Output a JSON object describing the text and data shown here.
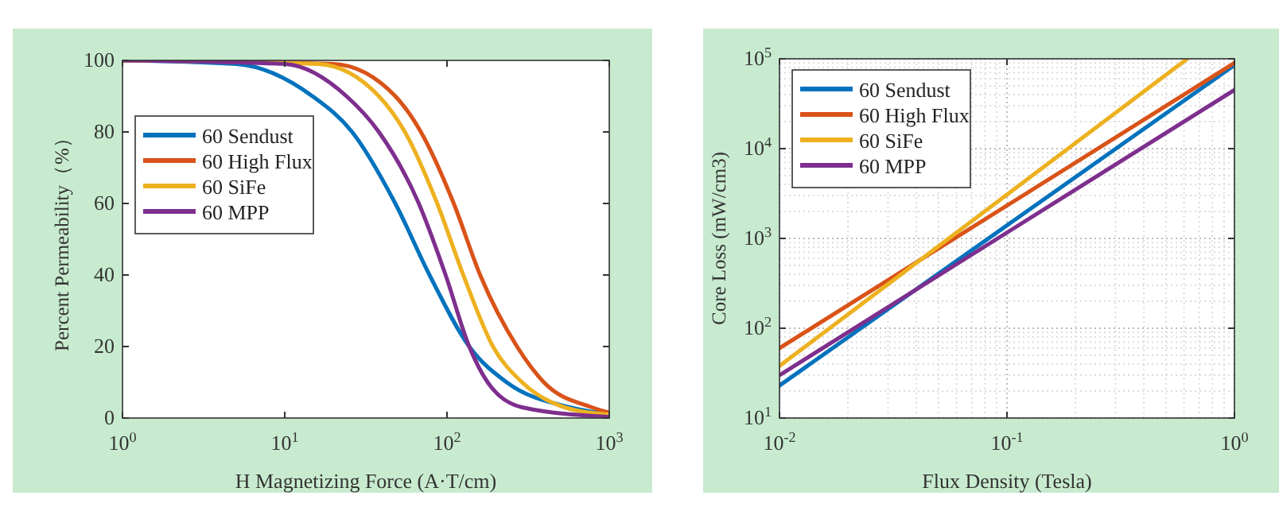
{
  "chart_data": [
    {
      "type": "line",
      "xlabel": "H Magnetizing Force (A·T/cm)",
      "ylabel": "Percent Permeability（%）",
      "log": "x",
      "xlim": [
        1,
        1000
      ],
      "ylim": [
        0,
        100
      ],
      "xticks": [
        {
          "value": 1,
          "label": "10$^{0}$"
        },
        {
          "value": 10,
          "label": "10$^{1}$"
        },
        {
          "value": 100,
          "label": "10$^{2}$"
        },
        {
          "value": 1000,
          "label": "10$^{3}$"
        }
      ],
      "yticks": [
        0,
        20,
        40,
        60,
        80,
        100
      ],
      "grid": false,
      "legend": "top left",
      "series": [
        {
          "name": "60 Sendust",
          "color": "#0072bd",
          "x": [
            1,
            5,
            14.8,
            26,
            48,
            78,
            137,
            233,
            570,
            1000
          ],
          "values": [
            100,
            99,
            90,
            80,
            60,
            40,
            20,
            10,
            3,
            1
          ]
        },
        {
          "name": "60 High Flux",
          "color": "#d95319",
          "x": [
            1,
            20,
            48,
            69,
            110,
            160,
            270,
            395,
            780,
            1000
          ],
          "values": [
            100,
            99,
            90,
            80,
            60,
            40,
            20,
            10,
            3,
            1.5
          ]
        },
        {
          "name": "60 SiFe",
          "color": "#edb120",
          "x": [
            1,
            16,
            38,
            55,
            87,
            126,
            192,
            290,
            530,
            1000
          ],
          "values": [
            100,
            99,
            90,
            80,
            60,
            40,
            20,
            10,
            3,
            1
          ]
        },
        {
          "name": "60 MPP",
          "color": "#7e2f8e",
          "x": [
            1,
            10,
            24,
            38,
            67,
            98,
            137,
            178,
            290,
            1000
          ],
          "values": [
            100,
            99,
            90,
            80,
            60,
            40,
            20,
            10,
            3,
            0.3
          ]
        }
      ]
    },
    {
      "type": "line",
      "xlabel": "Flux Density (Tesla)",
      "ylabel": "Core Loss (mW/cm3)",
      "log": "xy",
      "xlim": [
        0.01,
        1
      ],
      "ylim": [
        10,
        100000
      ],
      "xticks": [
        {
          "value": 0.01,
          "label": "10$^{-2}$"
        },
        {
          "value": 0.1,
          "label": "10$^{-1}$"
        },
        {
          "value": 1,
          "label": "10$^{0}$"
        }
      ],
      "yticks": [
        {
          "value": 10,
          "label": "10$^{1}$"
        },
        {
          "value": 100,
          "label": "10$^{2}$"
        },
        {
          "value": 1000,
          "label": "10$^{3}$"
        },
        {
          "value": 10000,
          "label": "10$^{4}$"
        },
        {
          "value": 100000,
          "label": "10$^{5}$"
        }
      ],
      "grid": true,
      "legend": "top left",
      "series": [
        {
          "name": "60 Sendust",
          "color": "#0072bd",
          "x": [
            0.01,
            1
          ],
          "values": [
            23,
            85000
          ]
        },
        {
          "name": "60 High Flux",
          "color": "#d95319",
          "x": [
            0.01,
            1
          ],
          "values": [
            60,
            90000
          ]
        },
        {
          "name": "60 SiFe",
          "color": "#edb120",
          "x": [
            0.01,
            0.62
          ],
          "values": [
            38,
            100000
          ]
        },
        {
          "name": "60 MPP",
          "color": "#7e2f8e",
          "x": [
            0.01,
            1
          ],
          "values": [
            30,
            45000
          ]
        }
      ]
    }
  ]
}
